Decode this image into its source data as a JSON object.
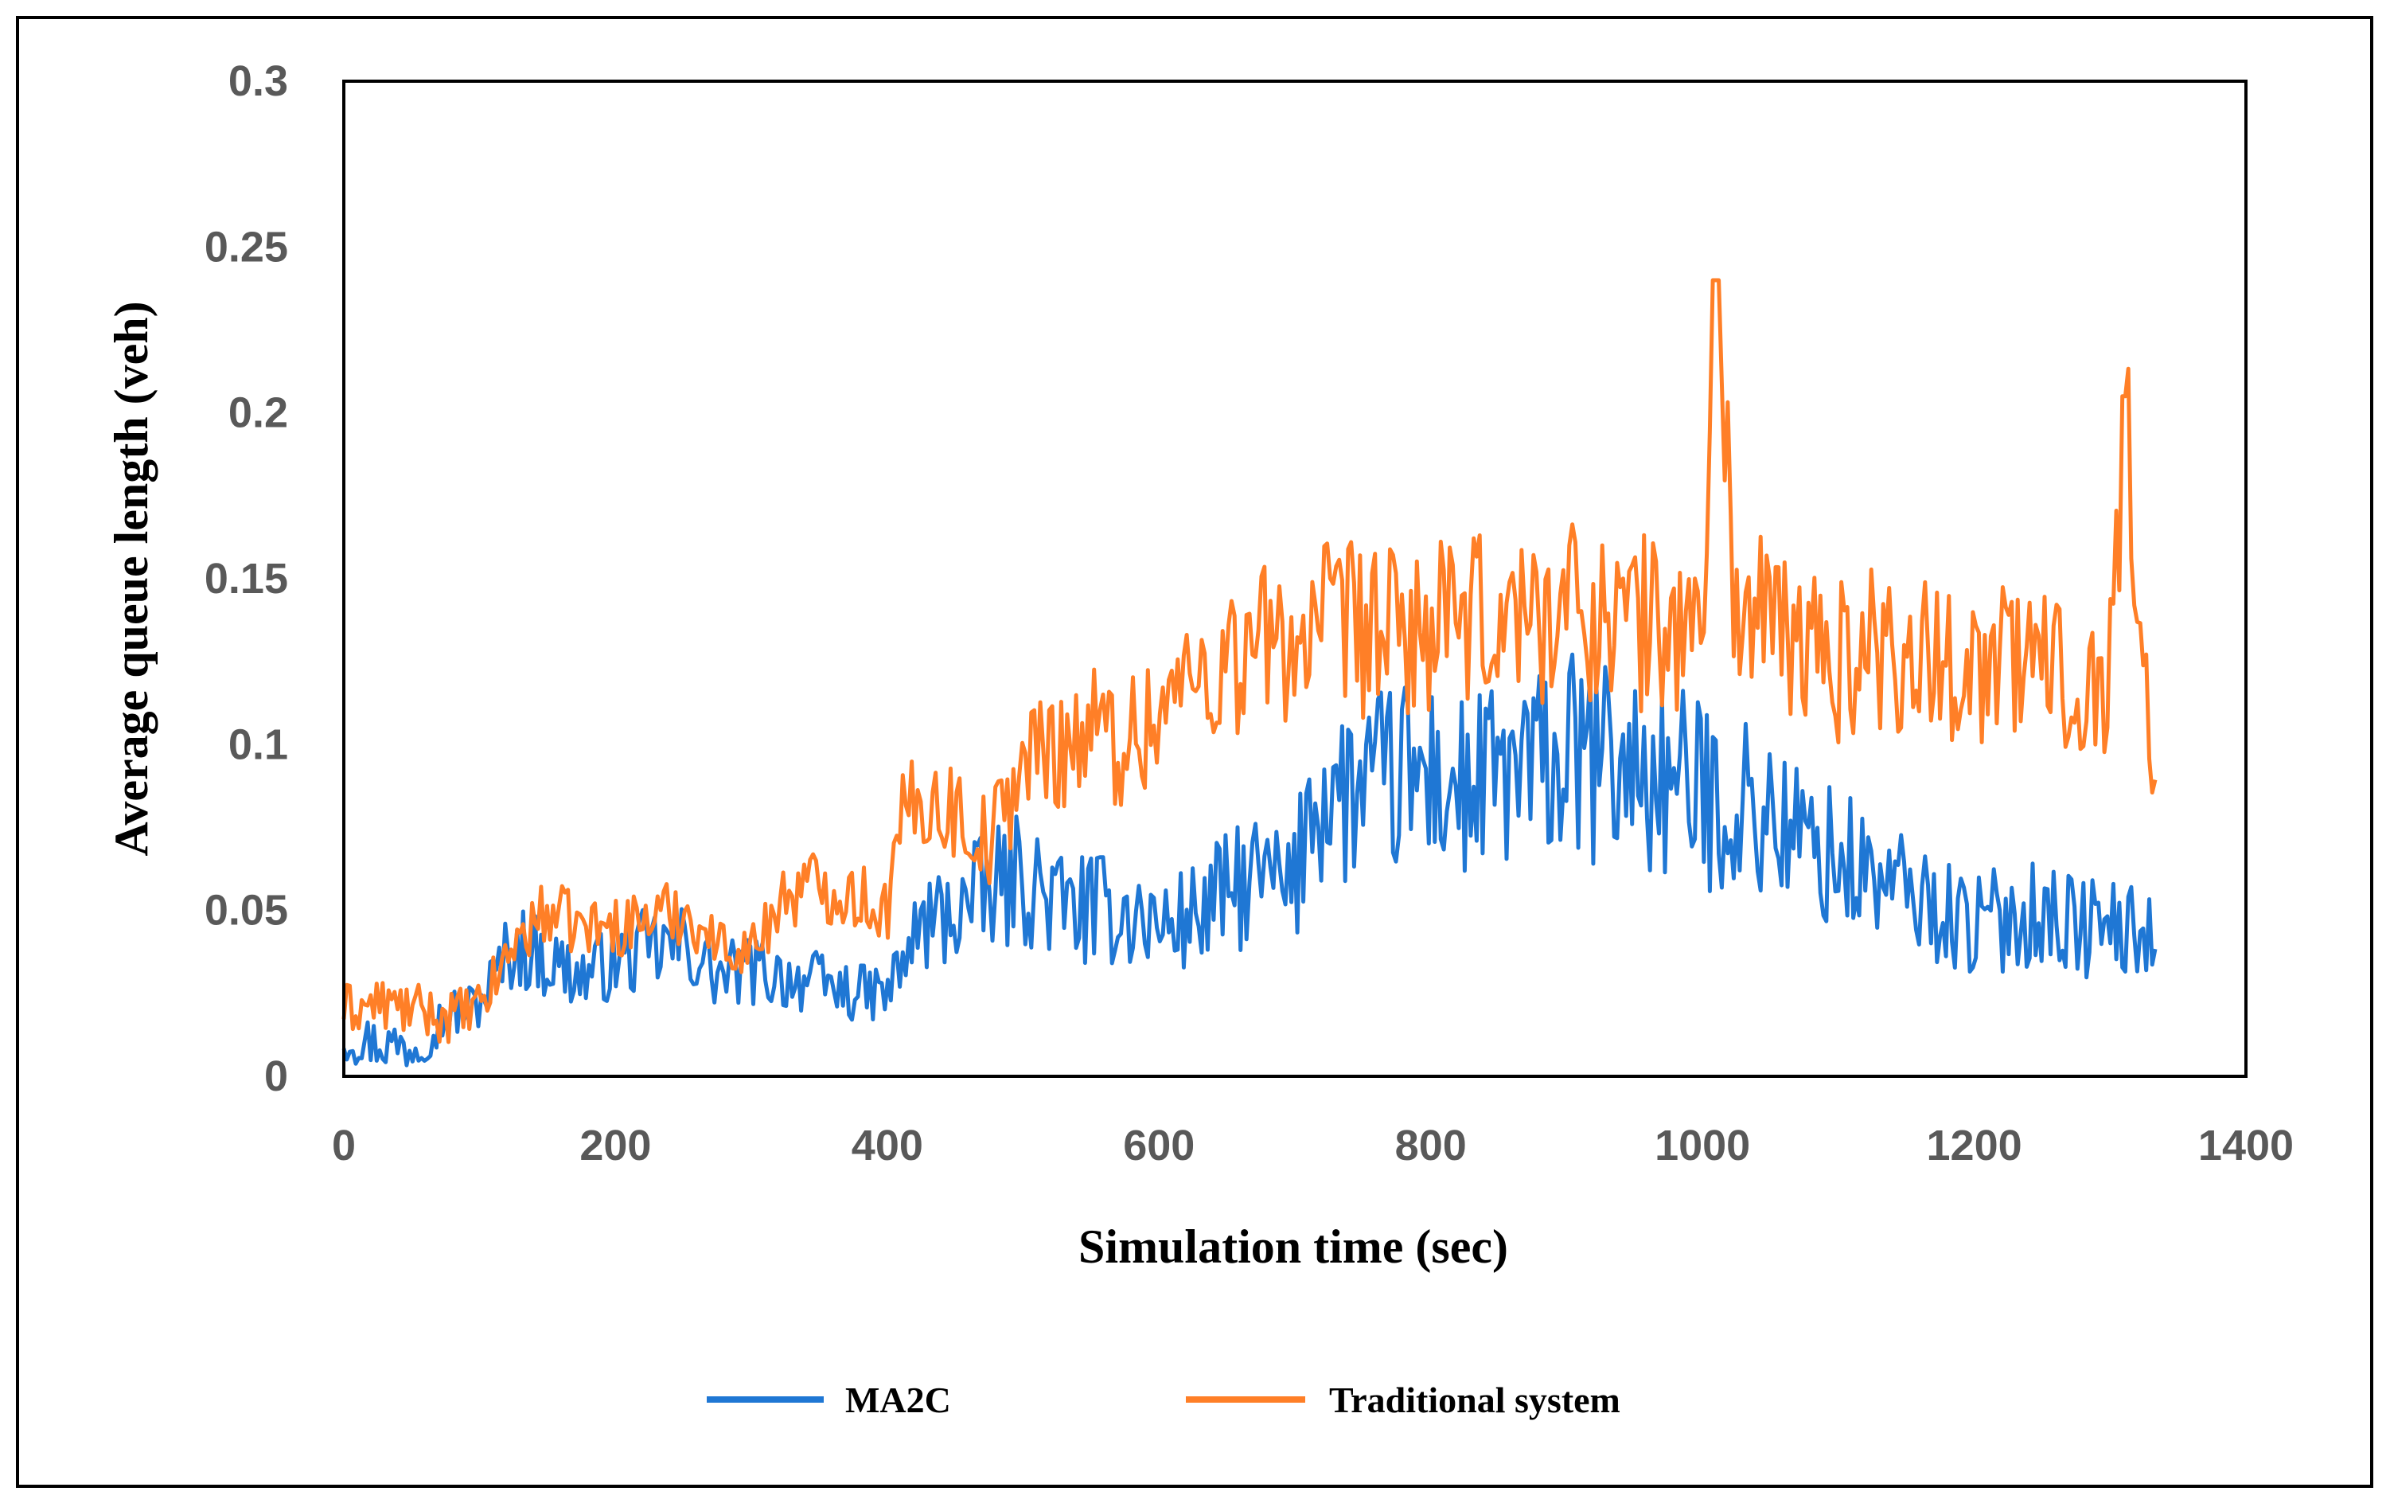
{
  "chart_data": {
    "type": "line",
    "title": "",
    "xlabel": "Simulation time (sec)",
    "ylabel": "Average queue length (veh)",
    "xlim": [
      0,
      1400
    ],
    "ylim": [
      0,
      0.3
    ],
    "x_ticks": [
      "0",
      "200",
      "400",
      "600",
      "800",
      "1000",
      "1200",
      "1400"
    ],
    "y_ticks": [
      "0",
      "0.05",
      "0.1",
      "0.15",
      "0.2",
      "0.25",
      "0.3"
    ],
    "grid": false,
    "legend_position": "bottom",
    "series": [
      {
        "name": "MA2C",
        "color": "#1f77d4",
        "x": [
          0,
          25,
          50,
          75,
          100,
          125,
          150,
          175,
          200,
          225,
          250,
          275,
          300,
          325,
          350,
          375,
          400,
          425,
          450,
          475,
          500,
          525,
          550,
          575,
          600,
          625,
          650,
          675,
          700,
          710,
          725,
          750,
          775,
          800,
          825,
          850,
          875,
          900,
          925,
          950,
          975,
          1000,
          1025,
          1050,
          1075,
          1100,
          1125,
          1150,
          1175,
          1200,
          1225,
          1250,
          1275,
          1300,
          1325,
          1335
        ],
        "values": [
          0.012,
          0.01,
          0.009,
          0.018,
          0.022,
          0.04,
          0.035,
          0.03,
          0.035,
          0.038,
          0.04,
          0.03,
          0.032,
          0.03,
          0.028,
          0.025,
          0.025,
          0.045,
          0.05,
          0.055,
          0.06,
          0.052,
          0.05,
          0.05,
          0.045,
          0.048,
          0.055,
          0.06,
          0.055,
          0.085,
          0.085,
          0.085,
          0.09,
          0.09,
          0.085,
          0.09,
          0.092,
          0.095,
          0.095,
          0.092,
          0.088,
          0.085,
          0.082,
          0.078,
          0.07,
          0.065,
          0.06,
          0.055,
          0.05,
          0.045,
          0.048,
          0.05,
          0.045,
          0.045,
          0.042,
          0.04
        ]
      },
      {
        "name": "Traditional system",
        "color": "#ff7f27",
        "x": [
          0,
          25,
          50,
          75,
          100,
          125,
          150,
          175,
          200,
          225,
          250,
          275,
          300,
          325,
          350,
          375,
          400,
          410,
          425,
          450,
          475,
          500,
          525,
          550,
          575,
          600,
          625,
          650,
          675,
          700,
          725,
          750,
          775,
          800,
          825,
          850,
          875,
          900,
          925,
          950,
          975,
          1000,
          1010,
          1025,
          1050,
          1075,
          1100,
          1125,
          1150,
          1175,
          1200,
          1225,
          1250,
          1275,
          1300,
          1310,
          1325,
          1335
        ],
        "values": [
          0.02,
          0.022,
          0.02,
          0.018,
          0.02,
          0.04,
          0.05,
          0.045,
          0.045,
          0.048,
          0.05,
          0.04,
          0.038,
          0.055,
          0.058,
          0.055,
          0.05,
          0.075,
          0.085,
          0.08,
          0.07,
          0.095,
          0.1,
          0.105,
          0.1,
          0.11,
          0.12,
          0.125,
          0.13,
          0.132,
          0.135,
          0.135,
          0.133,
          0.135,
          0.135,
          0.138,
          0.14,
          0.142,
          0.14,
          0.138,
          0.135,
          0.135,
          0.24,
          0.14,
          0.135,
          0.13,
          0.125,
          0.13,
          0.128,
          0.125,
          0.125,
          0.125,
          0.125,
          0.12,
          0.12,
          0.205,
          0.115,
          0.1
        ]
      }
    ],
    "annotations": [
      {
        "series": "Traditional system",
        "x": 1010,
        "y": 0.24,
        "note": "peak"
      },
      {
        "series": "Traditional system",
        "x": 1310,
        "y": 0.205,
        "note": "peak"
      }
    ]
  }
}
